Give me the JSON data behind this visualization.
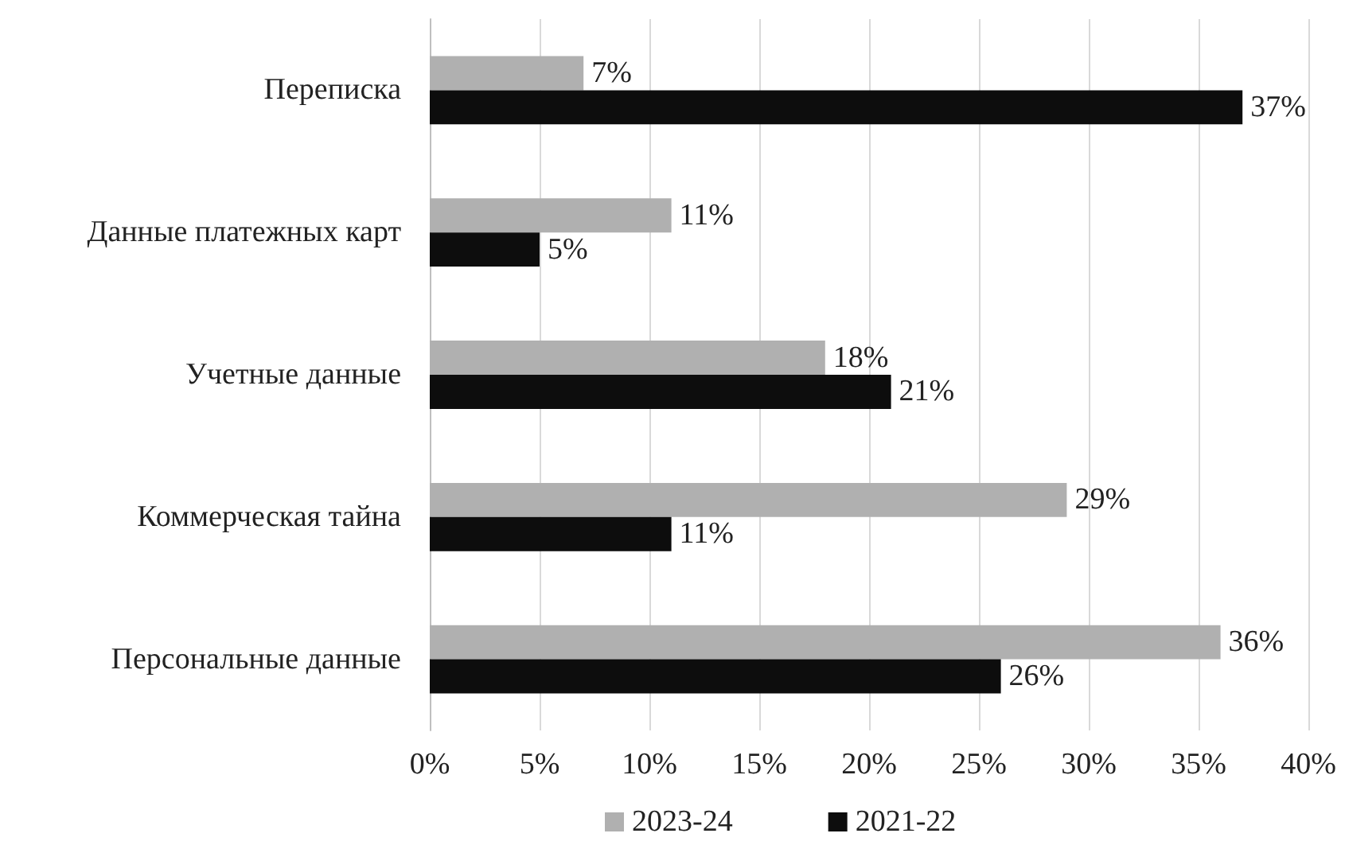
{
  "chart_data": {
    "type": "bar",
    "orientation": "horizontal",
    "categories": [
      "Переписка",
      "Данные платежных карт",
      "Учетные данные",
      "Коммерческая тайна",
      "Персональные данные"
    ],
    "series": [
      {
        "name": "2023-24",
        "color": "#b0b0b0",
        "values": [
          7,
          11,
          18,
          29,
          36
        ],
        "value_labels": [
          "7%",
          "11%",
          "18%",
          "29%",
          "36%"
        ]
      },
      {
        "name": "2021-22",
        "color": "#0d0d0d",
        "values": [
          37,
          5,
          21,
          11,
          26
        ],
        "value_labels": [
          "37%",
          "5%",
          "21%",
          "11%",
          "26%"
        ]
      }
    ],
    "xlim": [
      0,
      40
    ],
    "xticks": [
      {
        "value": 0,
        "label": "0%"
      },
      {
        "value": 5,
        "label": "5%"
      },
      {
        "value": 10,
        "label": "10%"
      },
      {
        "value": 15,
        "label": "15%"
      },
      {
        "value": 20,
        "label": "20%"
      },
      {
        "value": 25,
        "label": "25%"
      },
      {
        "value": 30,
        "label": "30%"
      },
      {
        "value": 35,
        "label": "35%"
      },
      {
        "value": 40,
        "label": "40%"
      }
    ],
    "grid": "x",
    "legend": "bottom"
  }
}
